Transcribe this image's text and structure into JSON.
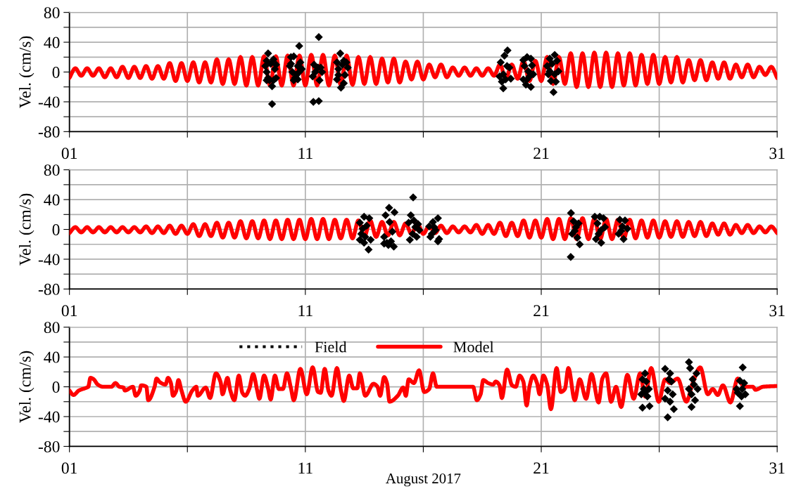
{
  "chart_data": [
    {
      "type": "line",
      "ylabel": "Vel. (cm/s)",
      "xlim": [
        1,
        31
      ],
      "ylim": [
        -80,
        80
      ],
      "xticks": [
        {
          "value": 1,
          "label": "01"
        },
        {
          "value": 6,
          "label": null
        },
        {
          "value": 11,
          "label": "11"
        },
        {
          "value": 16,
          "label": null
        },
        {
          "value": 21,
          "label": "21"
        },
        {
          "value": 26,
          "label": null
        },
        {
          "value": 31,
          "label": "31"
        }
      ],
      "yticks": [
        -80,
        {
          "value": -60,
          "label": null
        },
        -40,
        {
          "value": -20,
          "label": null
        },
        0,
        {
          "value": 20,
          "label": null
        },
        40,
        {
          "value": 60,
          "label": null
        },
        80
      ],
      "grid": true,
      "legend": false,
      "series": [
        {
          "color": "#ff0000",
          "line_style": "solid",
          "x": [
            1.0,
            1.25,
            1.5,
            1.75,
            2.0,
            2.25,
            2.5,
            2.75,
            3.0,
            3.25,
            3.5,
            3.75,
            4.0,
            4.25,
            4.5,
            4.75,
            5.0,
            5.25,
            5.5,
            5.75,
            6.0,
            6.25,
            6.5,
            6.75,
            7.0,
            7.25,
            7.5,
            7.75,
            8.0,
            8.25,
            8.5,
            8.75,
            9.0,
            9.25,
            9.5,
            9.75,
            10.0,
            10.25,
            10.5,
            10.75,
            11.0,
            11.25,
            11.5,
            11.75,
            12.0,
            12.25,
            12.5,
            12.75,
            13.0,
            13.25,
            13.5,
            13.75,
            14.0,
            14.25,
            14.5,
            14.75,
            15.0,
            15.25,
            15.5,
            15.75,
            16.0,
            16.25,
            16.5,
            16.75,
            17.0,
            17.25,
            17.5,
            17.75,
            18.0,
            18.25,
            18.5,
            18.75,
            19.0,
            19.25,
            19.5,
            19.75,
            20.0,
            20.25,
            20.5,
            20.75,
            21.0,
            21.25,
            21.5,
            21.75,
            22.0,
            22.25,
            22.5,
            22.75,
            23.0,
            23.25,
            23.5,
            23.75,
            24.0,
            24.25,
            24.5,
            24.75,
            25.0,
            25.25,
            25.5,
            25.75,
            26.0,
            26.25,
            26.5,
            26.75,
            27.0,
            27.25,
            27.5,
            27.75,
            28.0,
            28.25,
            28.5,
            28.75,
            29.0,
            29.25,
            29.5,
            29.75,
            30.0,
            30.25,
            30.5,
            30.75,
            31.0
          ],
          "values": [
            -8,
            5,
            -5,
            5,
            -5,
            5,
            -7,
            5,
            -7,
            7,
            -8,
            7,
            -8,
            8,
            -9,
            8,
            -9,
            12,
            -12,
            12,
            -12,
            13,
            -14,
            13,
            -14,
            17,
            -16,
            17,
            -16,
            20,
            -18,
            20,
            -18,
            21,
            -18,
            21,
            -18,
            22,
            -18,
            22,
            -18,
            23,
            -18,
            23,
            -18,
            22,
            -17,
            22,
            -17,
            20,
            -16,
            20,
            -16,
            18,
            -14,
            18,
            -14,
            14,
            -10,
            14,
            -10,
            10,
            -7,
            10,
            -7,
            6,
            -5,
            6,
            -5,
            5,
            -5,
            5,
            -5,
            10,
            -9,
            10,
            -9,
            15,
            -12,
            15,
            -12,
            20,
            -16,
            20,
            -16,
            25,
            -20,
            25,
            -20,
            26,
            -20,
            26,
            -20,
            25,
            -18,
            25,
            -18,
            23,
            -16,
            23,
            -16,
            20,
            -14,
            20,
            -14,
            16,
            -11,
            16,
            -11,
            13,
            -9,
            13,
            -9,
            10,
            -7,
            10,
            -7,
            7,
            -4,
            7,
            -8
          ]
        },
        {
          "type": "scatter",
          "color": "#000000",
          "marker": "diamond",
          "x": [
            9.42,
            9.36,
            9.3,
            9.36,
            9.42,
            9.48,
            9.59,
            9.59,
            9.65,
            9.71,
            9.76,
            9.53,
            9.36,
            9.65,
            9.76,
            10.39,
            10.51,
            10.74,
            10.34,
            10.45,
            10.56,
            10.68,
            10.79,
            10.51,
            10.62,
            10.74,
            10.39,
            10.85,
            10.68,
            11.57,
            11.34,
            11.57,
            11.37,
            11.42,
            11.31,
            11.6,
            11.65,
            11.71,
            11.54,
            12.48,
            12.34,
            12.4,
            12.34,
            12.51,
            12.63,
            12.68,
            12.74,
            12.57,
            12.4,
            12.8,
            12.63,
            19.57,
            19.44,
            19.28,
            19.55,
            19.39,
            19.49,
            19.33,
            19.39,
            19.65,
            19.71,
            19.23,
            20.24,
            20.4,
            20.56,
            20.29,
            20.45,
            20.61,
            20.24,
            20.35,
            20.56,
            20.5,
            20.66,
            20.4,
            21.57,
            21.36,
            21.25,
            21.46,
            21.67,
            21.3,
            21.41,
            21.62,
            21.52,
            21.36,
            21.73,
            21.57
          ],
          "values": [
            25,
            15,
            8,
            0,
            -8,
            -11,
            -19,
            -43,
            17,
            4,
            -8,
            11,
            -11,
            -11,
            10,
            20,
            21,
            35,
            8,
            0,
            -8,
            8,
            13,
            -11,
            -4,
            0,
            11,
            4,
            -10,
            47,
            -40,
            -39,
            10,
            0,
            -6,
            -11,
            6,
            0,
            6,
            25,
            13,
            4,
            -10,
            -21,
            -15,
            -4,
            13,
            10,
            -4,
            6,
            15,
            29,
            22,
            13,
            8,
            -3,
            -10,
            -13,
            -22,
            6,
            -9,
            -6,
            16,
            20,
            18,
            8,
            1,
            9,
            -10,
            -17,
            -20,
            -6,
            -3,
            -10,
            23,
            18,
            8,
            11,
            15,
            -3,
            -12,
            -13,
            -27,
            1,
            1,
            -3
          ]
        }
      ]
    },
    {
      "type": "line",
      "ylabel": "Vel. (cm/s)",
      "xlim": [
        1,
        31
      ],
      "ylim": [
        -80,
        80
      ],
      "xticks": [
        {
          "value": 1,
          "label": "01"
        },
        {
          "value": 6,
          "label": null
        },
        {
          "value": 11,
          "label": "11"
        },
        {
          "value": 16,
          "label": null
        },
        {
          "value": 21,
          "label": "21"
        },
        {
          "value": 26,
          "label": null
        },
        {
          "value": 31,
          "label": "31"
        }
      ],
      "yticks": [
        -80,
        {
          "value": -60,
          "label": null
        },
        -40,
        {
          "value": -20,
          "label": null
        },
        0,
        {
          "value": 20,
          "label": null
        },
        40,
        {
          "value": 60,
          "label": null
        },
        80
      ],
      "grid": true,
      "legend": false,
      "series": [
        {
          "color": "#ff0000",
          "line_style": "solid",
          "x": [
            1.0,
            1.25,
            1.5,
            1.75,
            2.0,
            2.25,
            2.5,
            2.75,
            3.0,
            3.25,
            3.5,
            3.75,
            4.0,
            4.25,
            4.5,
            4.75,
            5.0,
            5.25,
            5.5,
            5.75,
            6.0,
            6.25,
            6.5,
            6.75,
            7.0,
            7.25,
            7.5,
            7.75,
            8.0,
            8.25,
            8.5,
            8.75,
            9.0,
            9.25,
            9.5,
            9.75,
            10.0,
            10.25,
            10.5,
            10.75,
            11.0,
            11.25,
            11.5,
            11.75,
            12.0,
            12.25,
            12.5,
            12.75,
            13.0,
            13.25,
            13.5,
            13.75,
            14.0,
            14.25,
            14.5,
            14.75,
            15.0,
            15.25,
            15.5,
            15.75,
            16.0,
            16.25,
            16.5,
            16.75,
            17.0,
            17.25,
            17.5,
            17.75,
            18.0,
            18.25,
            18.5,
            18.75,
            19.0,
            19.25,
            19.5,
            19.75,
            20.0,
            20.25,
            20.5,
            20.75,
            21.0,
            21.25,
            21.5,
            21.75,
            22.0,
            22.25,
            22.5,
            22.75,
            23.0,
            23.25,
            23.5,
            23.75,
            24.0,
            24.25,
            24.5,
            24.75,
            25.0,
            25.25,
            25.5,
            25.75,
            26.0,
            26.25,
            26.5,
            26.75,
            27.0,
            27.25,
            27.5,
            27.75,
            28.0,
            28.25,
            28.5,
            28.75,
            29.0,
            29.25,
            29.5,
            29.75,
            30.0,
            30.25,
            30.5,
            30.75,
            31.0
          ],
          "values": [
            -5,
            3,
            -4,
            3,
            -4,
            3,
            -4,
            3,
            -4,
            3,
            -4,
            3,
            -4,
            4,
            -5,
            4,
            -5,
            5,
            -6,
            5,
            -6,
            7,
            -9,
            7,
            -9,
            9,
            -11,
            9,
            -11,
            11,
            -12,
            11,
            -12,
            12,
            -13,
            12,
            -13,
            13,
            -13,
            13,
            -13,
            14,
            -13,
            14,
            -13,
            13,
            -12,
            13,
            -12,
            12,
            -10,
            12,
            -10,
            10,
            -8,
            10,
            -8,
            8,
            -6,
            8,
            -6,
            5,
            -5,
            5,
            -5,
            4,
            -4,
            4,
            -4,
            6,
            -6,
            6,
            -6,
            9,
            -9,
            9,
            -9,
            12,
            -11,
            12,
            -11,
            14,
            -13,
            14,
            -13,
            15,
            -13,
            15,
            -13,
            14,
            -13,
            14,
            -13,
            13,
            -12,
            13,
            -12,
            12,
            -11,
            12,
            -11,
            11,
            -10,
            11,
            -10,
            10,
            -9,
            10,
            -9,
            8,
            -7,
            8,
            -7,
            6,
            -5,
            6,
            -5,
            4,
            -4,
            4,
            -5
          ]
        },
        {
          "type": "scatter",
          "color": "#000000",
          "marker": "diamond",
          "x": [
            13.31,
            13.49,
            13.71,
            13.43,
            13.37,
            13.54,
            13.49,
            13.68,
            13.77,
            13.6,
            13.31,
            14.55,
            14.4,
            14.78,
            14.57,
            14.34,
            14.46,
            14.63,
            14.75,
            14.69,
            14.34,
            14.52,
            15.57,
            15.47,
            15.38,
            15.6,
            15.78,
            15.43,
            15.55,
            15.72,
            15.83,
            15.66,
            16.62,
            16.41,
            16.25,
            16.52,
            16.36,
            16.3,
            16.67,
            16.62,
            16.46,
            22.26,
            22.25,
            22.63,
            22.37,
            22.47,
            22.31,
            22.53,
            22.42,
            22.58,
            23.27,
            23.48,
            23.64,
            23.38,
            23.54,
            23.32,
            23.54,
            23.43,
            23.7,
            24.33,
            24.55,
            24.44,
            24.65,
            24.28,
            24.49,
            24.39
          ],
          "values": [
            9,
            17,
            15,
            1,
            -6,
            -10,
            -18,
            -27,
            -14,
            5,
            -14,
            29,
            19,
            23,
            10,
            -10,
            -18,
            -16,
            -23,
            -3,
            -19,
            -21,
            43,
            19,
            9,
            12,
            7,
            -14,
            -6,
            -10,
            -1,
            3,
            15,
            10,
            4,
            -1,
            -6,
            -10,
            -13,
            -16,
            3,
            22,
            -37,
            -20,
            11,
            3,
            -6,
            -11,
            -2,
            8,
            17,
            17,
            15,
            8,
            -1,
            -13,
            -18,
            -6,
            3,
            13,
            12,
            4,
            1,
            -6,
            -13,
            -2
          ]
        }
      ]
    },
    {
      "type": "line",
      "ylabel": "Vel. (cm/s)",
      "xlabel": "August 2017",
      "xlim": [
        1,
        31
      ],
      "ylim": [
        -80,
        80
      ],
      "xticks": [
        {
          "value": 1,
          "label": "01"
        },
        {
          "value": 6,
          "label": null
        },
        {
          "value": 11,
          "label": "11"
        },
        {
          "value": 16,
          "label": null
        },
        {
          "value": 21,
          "label": "21"
        },
        {
          "value": 26,
          "label": null
        },
        {
          "value": 31,
          "label": "31"
        }
      ],
      "yticks": [
        -80,
        {
          "value": -60,
          "label": null
        },
        -40,
        {
          "value": -20,
          "label": null
        },
        0,
        {
          "value": 20,
          "label": null
        },
        40,
        {
          "value": 60,
          "label": null
        },
        80
      ],
      "grid": true,
      "legend": "top",
      "series": [
        {
          "type": "scatter",
          "name": "Field",
          "color": "#000000",
          "marker": "diamond",
          "x": [
            25.4,
            25.29,
            25.45,
            25.35,
            25.24,
            25.5,
            25.29,
            25.59,
            25.4,
            25.56,
            26.25,
            26.46,
            26.41,
            26.52,
            26.36,
            26.25,
            26.46,
            26.62,
            26.36,
            26.57,
            27.26,
            27.31,
            27.58,
            27.42,
            27.26,
            27.37,
            27.52,
            27.37,
            27.63,
            27.47,
            29.54,
            29.42,
            29.6,
            29.33,
            29.49,
            29.65,
            29.42,
            29.52,
            29.28
          ],
          "values": [
            18,
            10,
            7,
            -3,
            -10,
            -13,
            -28,
            -26,
            -7,
            -3,
            24,
            18,
            10,
            7,
            -5,
            -16,
            -20,
            -30,
            -41,
            -10,
            33,
            25,
            18,
            10,
            -3,
            -10,
            -18,
            -27,
            -3,
            3,
            26,
            8,
            5,
            -8,
            -13,
            -10,
            -26,
            -3,
            -3
          ]
        },
        {
          "name": "Model",
          "color": "#ff0000",
          "line_style": "solid",
          "x": [
            1.0,
            1.17,
            1.4,
            1.74,
            1.8,
            1.89,
            2.03,
            2.2,
            2.43,
            2.78,
            2.95,
            3.12,
            3.29,
            3.35,
            3.69,
            3.81,
            3.98,
            4.04,
            4.26,
            4.34,
            4.61,
            4.69,
            4.84,
            5.07,
            5.18,
            5.3,
            5.39,
            5.52,
            5.62,
            5.75,
            5.93,
            6.21,
            6.38,
            6.44,
            6.78,
            6.96,
            7.21,
            7.41,
            7.49,
            7.7,
            7.82,
            7.99,
            8.18,
            8.33,
            8.45,
            8.62,
            8.79,
            8.96,
            9.05,
            9.25,
            9.42,
            9.53,
            9.71,
            9.88,
            10.05,
            10.22,
            10.39,
            10.51,
            10.79,
            11.06,
            11.31,
            11.54,
            11.65,
            11.82,
            11.99,
            12.11,
            12.34,
            12.51,
            12.63,
            12.86,
            13.03,
            13.2,
            13.31,
            13.54,
            13.89,
            14.06,
            14.17,
            14.34,
            14.46,
            14.57,
            14.92,
            15.15,
            15.26,
            15.38,
            15.6,
            15.82,
            16.04,
            16.25,
            16.41,
            16.57,
            17.42,
            18.11,
            18.27,
            18.43,
            18.54,
            18.75,
            18.96,
            19.07,
            19.23,
            19.33,
            19.55,
            19.76,
            19.92,
            20.08,
            20.24,
            20.38,
            20.5,
            20.66,
            20.82,
            20.93,
            21.09,
            21.25,
            21.41,
            21.65,
            21.83,
            22.0,
            22.15,
            22.42,
            22.63,
            22.9,
            23.13,
            23.43,
            23.59,
            23.75,
            23.96,
            24.17,
            24.39,
            24.65,
            24.92,
            25.19,
            25.4,
            25.66,
            25.98,
            26.25,
            26.46,
            26.78,
            27.15,
            27.42,
            27.74,
            28.06,
            28.27,
            28.48,
            28.7,
            29.02,
            29.33,
            29.6,
            29.97,
            30.08,
            30.4,
            30.98
          ],
          "values": [
            -5,
            -11,
            -5,
            -1,
            0,
            12,
            10,
            3,
            0,
            0,
            5,
            0,
            -1,
            -5,
            0,
            -12,
            -5,
            2,
            0,
            -18,
            0,
            11,
            6,
            3,
            12,
            5,
            -12,
            -6,
            9,
            -5,
            -20,
            -5,
            0,
            -12,
            -1,
            -15,
            18,
            6,
            -10,
            12,
            -5,
            -18,
            15,
            -8,
            -12,
            -3,
            17,
            -5,
            -16,
            15,
            -2,
            -17,
            15,
            -3,
            -3,
            18,
            -2,
            -18,
            24,
            -10,
            26,
            -7,
            -8,
            24,
            -6,
            -12,
            25,
            -5,
            -19,
            15,
            -2,
            -2,
            18,
            -12,
            4,
            0,
            -12,
            13,
            5,
            -20,
            -12,
            -1,
            -12,
            10,
            5,
            22,
            -7,
            -3,
            18,
            0,
            0,
            0,
            -18,
            -10,
            9,
            5,
            3,
            7,
            2,
            -15,
            23,
            2,
            0,
            15,
            7,
            -25,
            0,
            15,
            5,
            -10,
            15,
            3,
            -30,
            25,
            -7,
            -3,
            25,
            -18,
            10,
            -16,
            17,
            -21,
            11,
            18,
            -20,
            0,
            -27,
            16,
            -16,
            18,
            -13,
            25,
            -20,
            10,
            5,
            11,
            -20,
            5,
            26,
            -10,
            -3,
            -11,
            2,
            -21,
            11,
            0,
            0,
            -4,
            0,
            1
          ]
        }
      ]
    }
  ]
}
